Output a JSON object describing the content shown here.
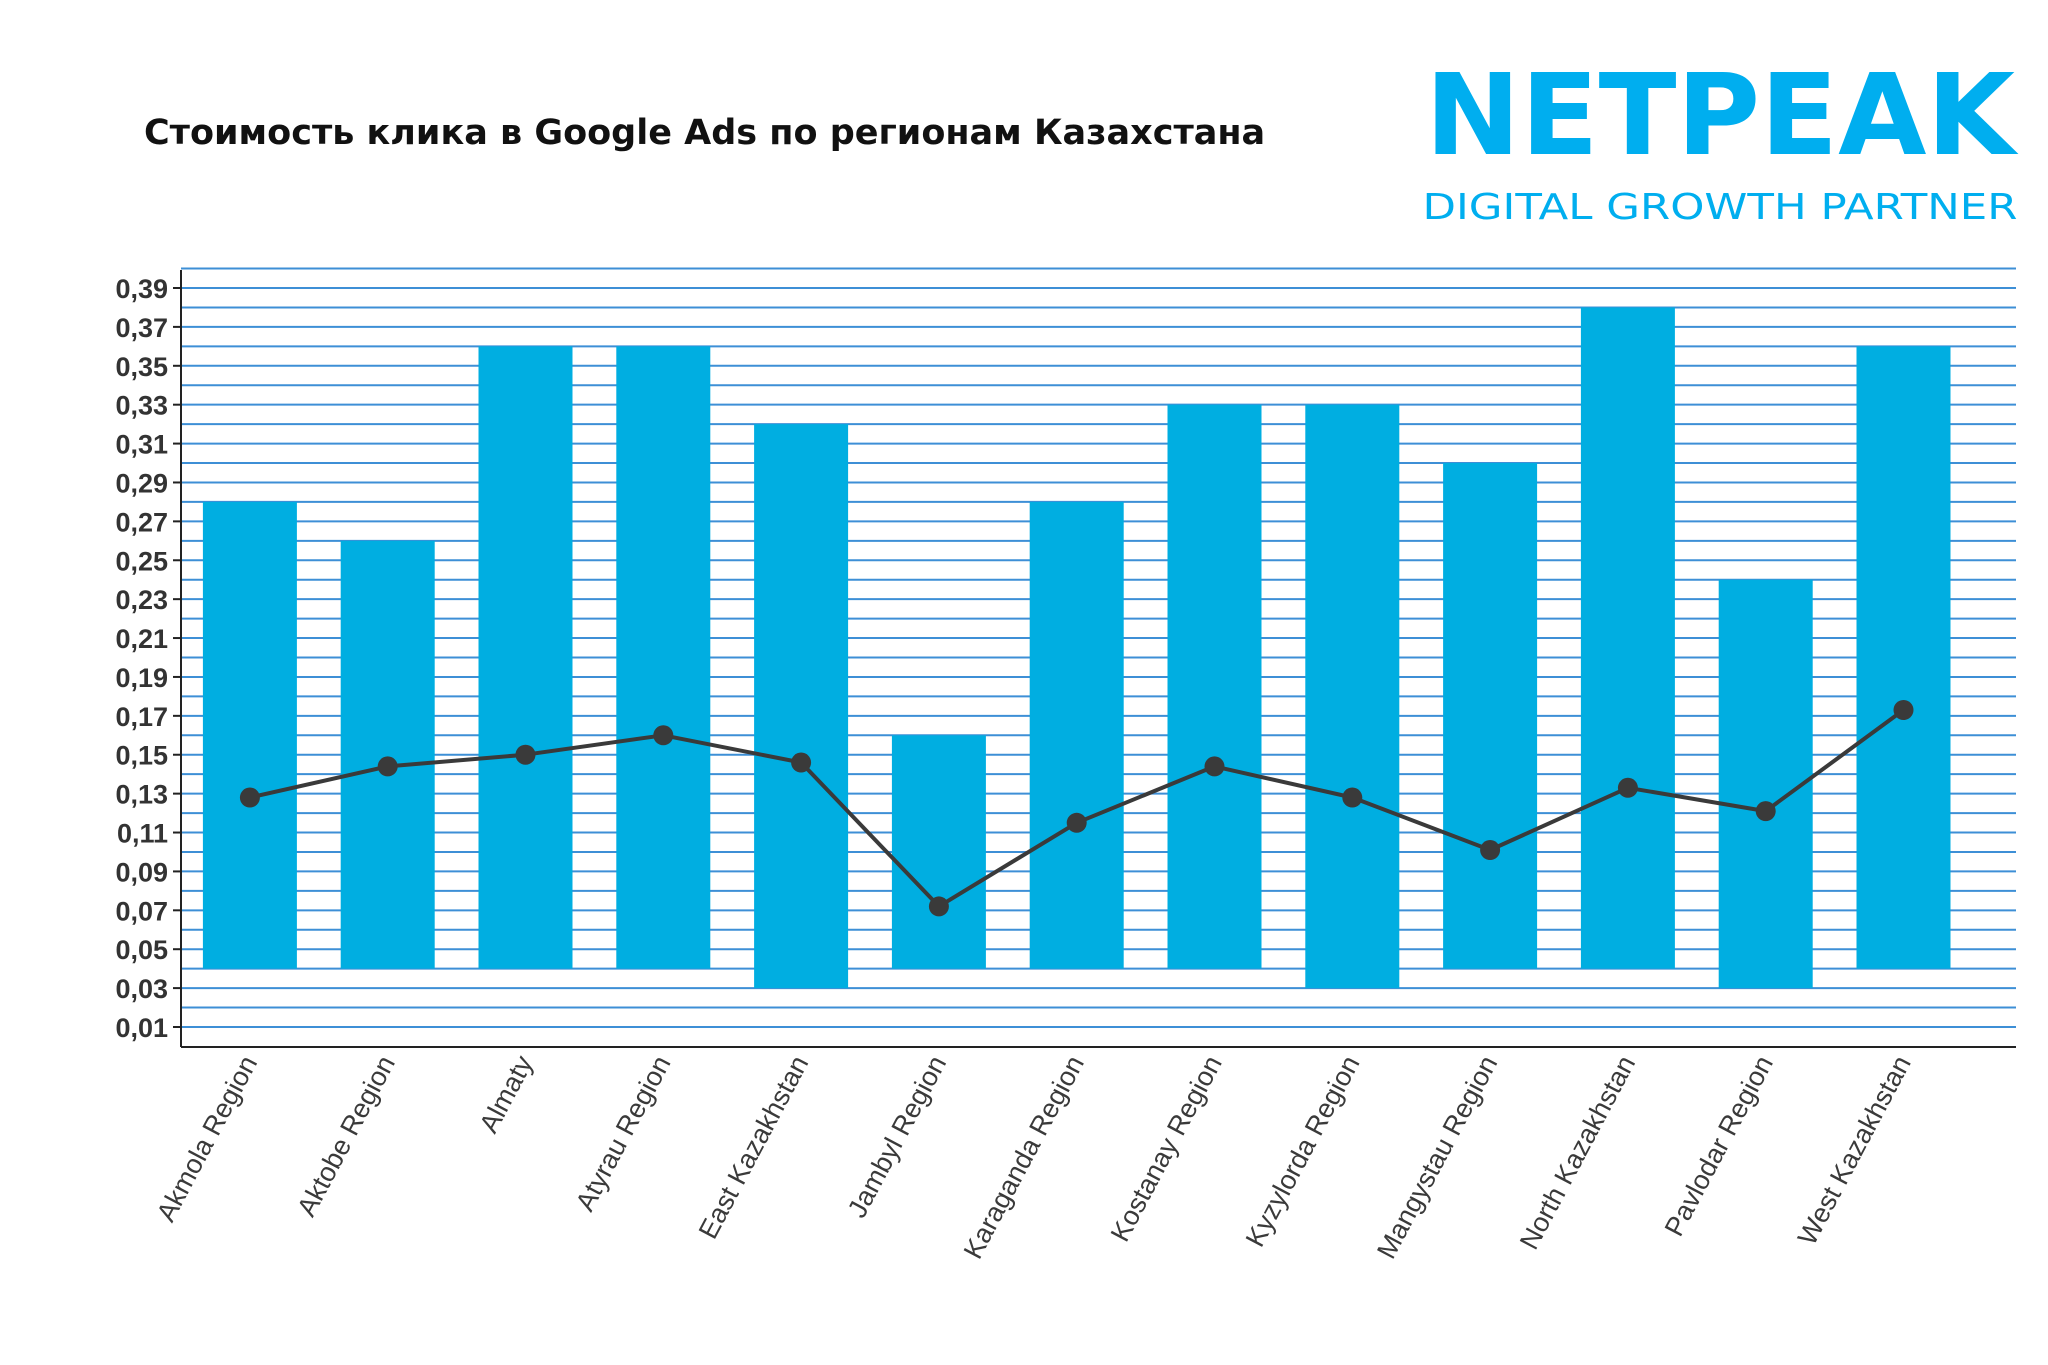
{
  "title": "Стоимость клика в Google Ads по регионам Казахстана",
  "brand": {
    "name": "NETPEAK",
    "tagline": "DIGITAL GROWTH PARTNER",
    "color": "#00AEEF"
  },
  "colors": {
    "bar": "#00AEE1",
    "line": "#3A3A3A",
    "grid": "#3D8FD6",
    "axis": "#222222"
  },
  "chart_data": {
    "type": "bar",
    "title": "Стоимость клика в Google Ads по регионам Казахстана",
    "xlabel": "",
    "ylabel": "",
    "ylim": [
      0.01,
      0.4
    ],
    "yticks": [
      "0,39",
      "0,37",
      "0,35",
      "0,33",
      "0,31",
      "0,29",
      "0,27",
      "0,25",
      "0,23",
      "0,21",
      "0,19",
      "0,17",
      "0,15",
      "0,13",
      "0,11",
      "0,09",
      "0,07",
      "0,05",
      "0,03",
      "0,01"
    ],
    "grid": true,
    "categories": [
      "Akmola Region",
      "Aktobe Region",
      "Almaty",
      "Atyrau Region",
      "East Kazakhstan",
      "Jambyl Region",
      "Karaganda Region",
      "Kostanay Region",
      "Kyzylorda Region",
      "Mangystau Region",
      "North Kazakhstan",
      "Pavlodar Region",
      "West Kazakhstan"
    ],
    "bars": [
      {
        "top": 0.28,
        "bottom": 0.04
      },
      {
        "top": 0.26,
        "bottom": 0.04
      },
      {
        "top": 0.36,
        "bottom": 0.04
      },
      {
        "top": 0.36,
        "bottom": 0.04
      },
      {
        "top": 0.32,
        "bottom": 0.03
      },
      {
        "top": 0.16,
        "bottom": 0.04
      },
      {
        "top": 0.28,
        "bottom": 0.04
      },
      {
        "top": 0.33,
        "bottom": 0.04
      },
      {
        "top": 0.33,
        "bottom": 0.03
      },
      {
        "top": 0.3,
        "bottom": 0.04
      },
      {
        "top": 0.38,
        "bottom": 0.04
      },
      {
        "top": 0.24,
        "bottom": 0.03
      },
      {
        "top": 0.36,
        "bottom": 0.04
      }
    ],
    "line_values": [
      0.128,
      0.144,
      0.15,
      0.16,
      0.146,
      0.072,
      0.115,
      0.144,
      0.128,
      0.101,
      0.133,
      0.121,
      0.173
    ]
  }
}
